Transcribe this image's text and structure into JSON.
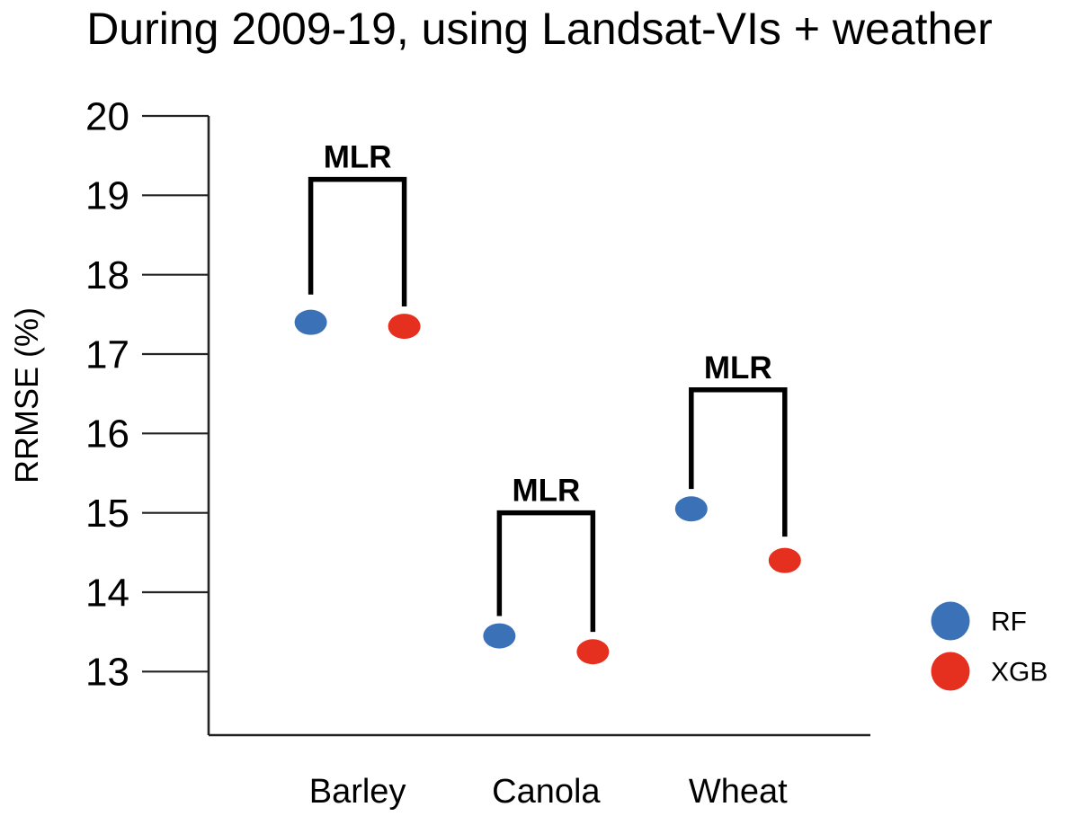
{
  "chart_data": {
    "type": "scatter",
    "title": "During 2009-19, using Landsat-VIs + weather",
    "ylabel": "RRMSE (%)",
    "xlabel": "",
    "ylim": [
      12.2,
      20
    ],
    "yticks": [
      20,
      19,
      18,
      17,
      16,
      15,
      14,
      13
    ],
    "grid": false,
    "categories": [
      "Barley",
      "Canola",
      "Wheat"
    ],
    "series": [
      {
        "name": "RF",
        "color": "#3b71b7",
        "values": [
          17.4,
          13.45,
          15.05
        ]
      },
      {
        "name": "XGB",
        "color": "#e6301f",
        "values": [
          17.35,
          13.25,
          14.4
        ]
      }
    ],
    "significance_brackets": [
      {
        "label": "MLR",
        "category": "Barley",
        "top": 19.2,
        "left_arm_end": 17.75,
        "right_arm_end": 17.6
      },
      {
        "label": "MLR",
        "category": "Canola",
        "top": 15.0,
        "left_arm_end": 13.7,
        "right_arm_end": 13.5
      },
      {
        "label": "MLR",
        "category": "Wheat",
        "top": 16.55,
        "left_arm_end": 15.3,
        "right_arm_end": 14.7
      }
    ],
    "legend": {
      "position": "right-bottom",
      "entries": [
        {
          "label": "RF",
          "color": "#3b71b7"
        },
        {
          "label": "XGB",
          "color": "#e6301f"
        }
      ]
    },
    "colors": {
      "axis": "#222222",
      "text": "#000000",
      "bracket": "#000000"
    }
  }
}
